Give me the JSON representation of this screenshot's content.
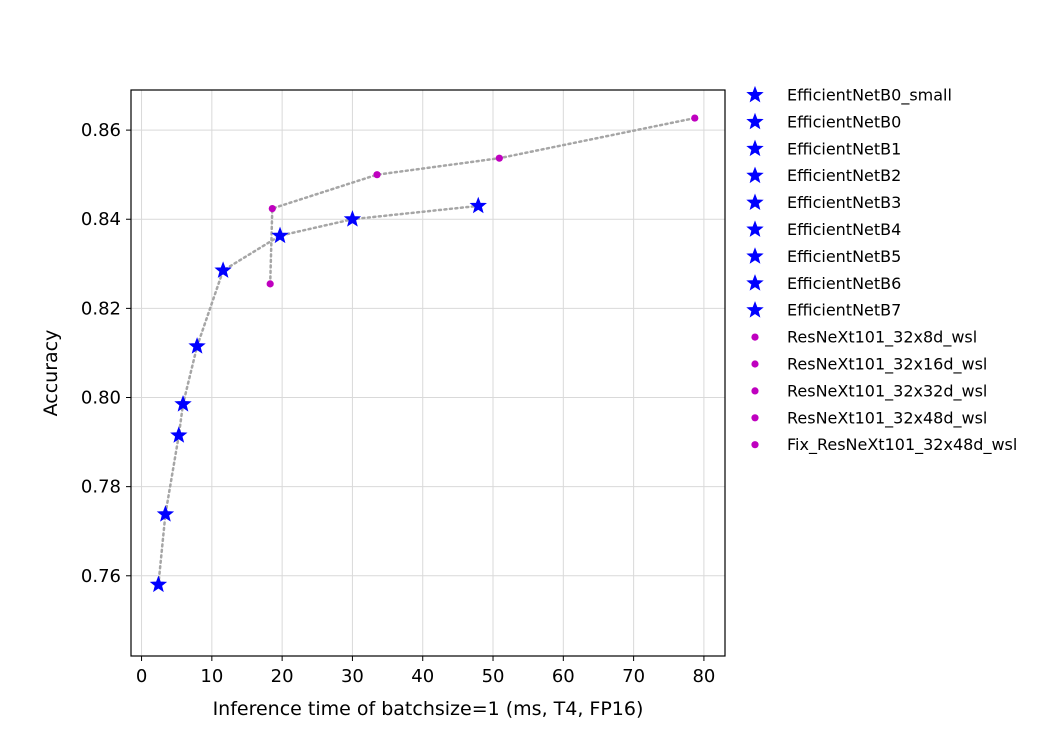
{
  "chart_data": {
    "type": "scatter",
    "title": "",
    "xlabel": "Inference time of batchsize=1 (ms, T4, FP16)",
    "ylabel": "Accuracy",
    "xlim": [
      -1.5,
      83
    ],
    "ylim": [
      0.742,
      0.869
    ],
    "xticks": [
      0,
      10,
      20,
      30,
      40,
      50,
      60,
      70,
      80
    ],
    "yticks": [
      0.76,
      0.78,
      0.8,
      0.82,
      0.84,
      0.86
    ],
    "xtick_labels": [
      "0",
      "10",
      "20",
      "30",
      "40",
      "50",
      "60",
      "70",
      "80"
    ],
    "ytick_labels": [
      "0.76",
      "0.78",
      "0.80",
      "0.82",
      "0.84",
      "0.86"
    ],
    "grid": true,
    "legend_position": "outside-right",
    "connector_color": "#a6a6a6",
    "series": [
      {
        "name": "EfficientNetB0_small",
        "marker": "star",
        "color": "#0000ff",
        "x": 2.4,
        "y": 0.758
      },
      {
        "name": "EfficientNetB0",
        "marker": "star",
        "color": "#0000ff",
        "x": 3.4,
        "y": 0.7738
      },
      {
        "name": "EfficientNetB1",
        "marker": "star",
        "color": "#0000ff",
        "x": 5.3,
        "y": 0.7915
      },
      {
        "name": "EfficientNetB2",
        "marker": "star",
        "color": "#0000ff",
        "x": 5.9,
        "y": 0.7985
      },
      {
        "name": "EfficientNetB3",
        "marker": "star",
        "color": "#0000ff",
        "x": 7.9,
        "y": 0.8115
      },
      {
        "name": "EfficientNetB4",
        "marker": "star",
        "color": "#0000ff",
        "x": 11.6,
        "y": 0.8285
      },
      {
        "name": "EfficientNetB5",
        "marker": "star",
        "color": "#0000ff",
        "x": 19.7,
        "y": 0.8363
      },
      {
        "name": "EfficientNetB6",
        "marker": "star",
        "color": "#0000ff",
        "x": 30.0,
        "y": 0.84
      },
      {
        "name": "EfficientNetB7",
        "marker": "star",
        "color": "#0000ff",
        "x": 47.9,
        "y": 0.843
      },
      {
        "name": "ResNeXt101_32x8d_wsl",
        "marker": "circle",
        "color": "#bf00bf",
        "x": 18.3,
        "y": 0.8255
      },
      {
        "name": "ResNeXt101_32x16d_wsl",
        "marker": "circle",
        "color": "#bf00bf",
        "x": 18.6,
        "y": 0.8424
      },
      {
        "name": "ResNeXt101_32x32d_wsl",
        "marker": "circle",
        "color": "#bf00bf",
        "x": 33.5,
        "y": 0.85
      },
      {
        "name": "ResNeXt101_32x48d_wsl",
        "marker": "circle",
        "color": "#bf00bf",
        "x": 50.9,
        "y": 0.8537
      },
      {
        "name": "Fix_ResNeXt101_32x48d_wsl",
        "marker": "circle",
        "color": "#bf00bf",
        "x": 78.7,
        "y": 0.8627
      }
    ],
    "connector_groups": [
      [
        "EfficientNetB0_small",
        "EfficientNetB0",
        "EfficientNetB1",
        "EfficientNetB2",
        "EfficientNetB3",
        "EfficientNetB4",
        "EfficientNetB5",
        "EfficientNetB6",
        "EfficientNetB7"
      ],
      [
        "ResNeXt101_32x8d_wsl",
        "ResNeXt101_32x16d_wsl",
        "ResNeXt101_32x32d_wsl",
        "ResNeXt101_32x48d_wsl",
        "Fix_ResNeXt101_32x48d_wsl"
      ]
    ]
  }
}
